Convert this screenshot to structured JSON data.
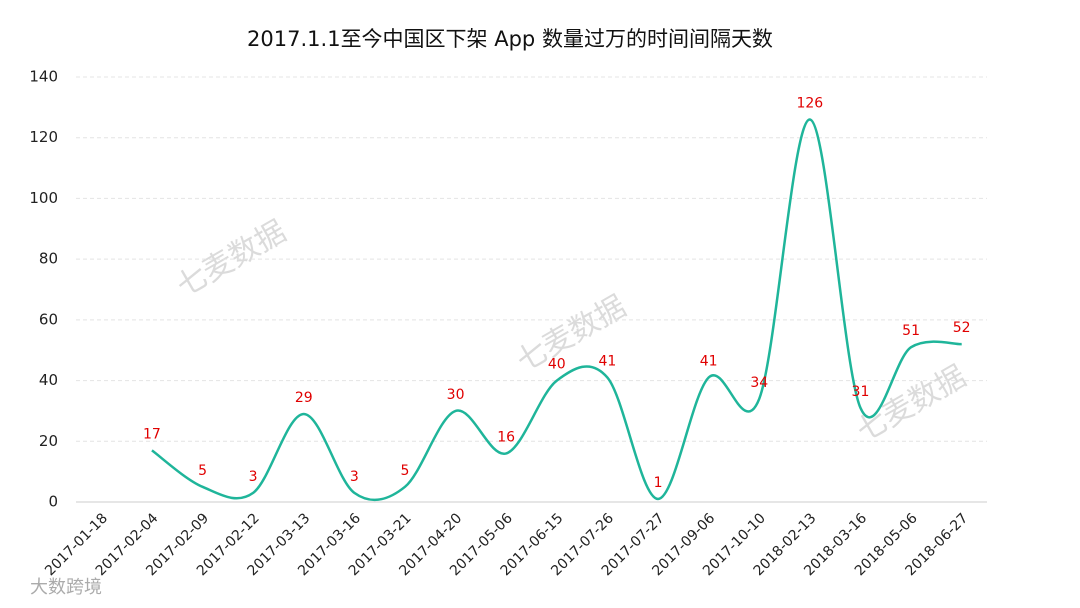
{
  "chart_data": {
    "type": "line",
    "title": "2017.1.1至今中国区下架 App 数量过万的时间间隔天数",
    "categories": [
      "2017-01-18",
      "2017-02-04",
      "2017-02-09",
      "2017-02-12",
      "2017-03-13",
      "2017-03-16",
      "2017-03-21",
      "2017-04-20",
      "2017-05-06",
      "2017-06-15",
      "2017-07-26",
      "2017-07-27",
      "2017-09-06",
      "2017-10-10",
      "2018-02-13",
      "2018-03-16",
      "2018-05-06",
      "2018-06-27"
    ],
    "values": [
      null,
      17,
      5,
      3,
      29,
      3,
      5,
      30,
      16,
      40,
      41,
      1,
      41,
      34,
      126,
      31,
      51,
      52
    ],
    "color": "#1fb59a",
    "ylim": [
      0,
      140
    ],
    "yticks": [
      0,
      20,
      40,
      60,
      80,
      100,
      120,
      140
    ],
    "grid": true,
    "watermark": "七麦数据",
    "logo": "大数跨境"
  }
}
